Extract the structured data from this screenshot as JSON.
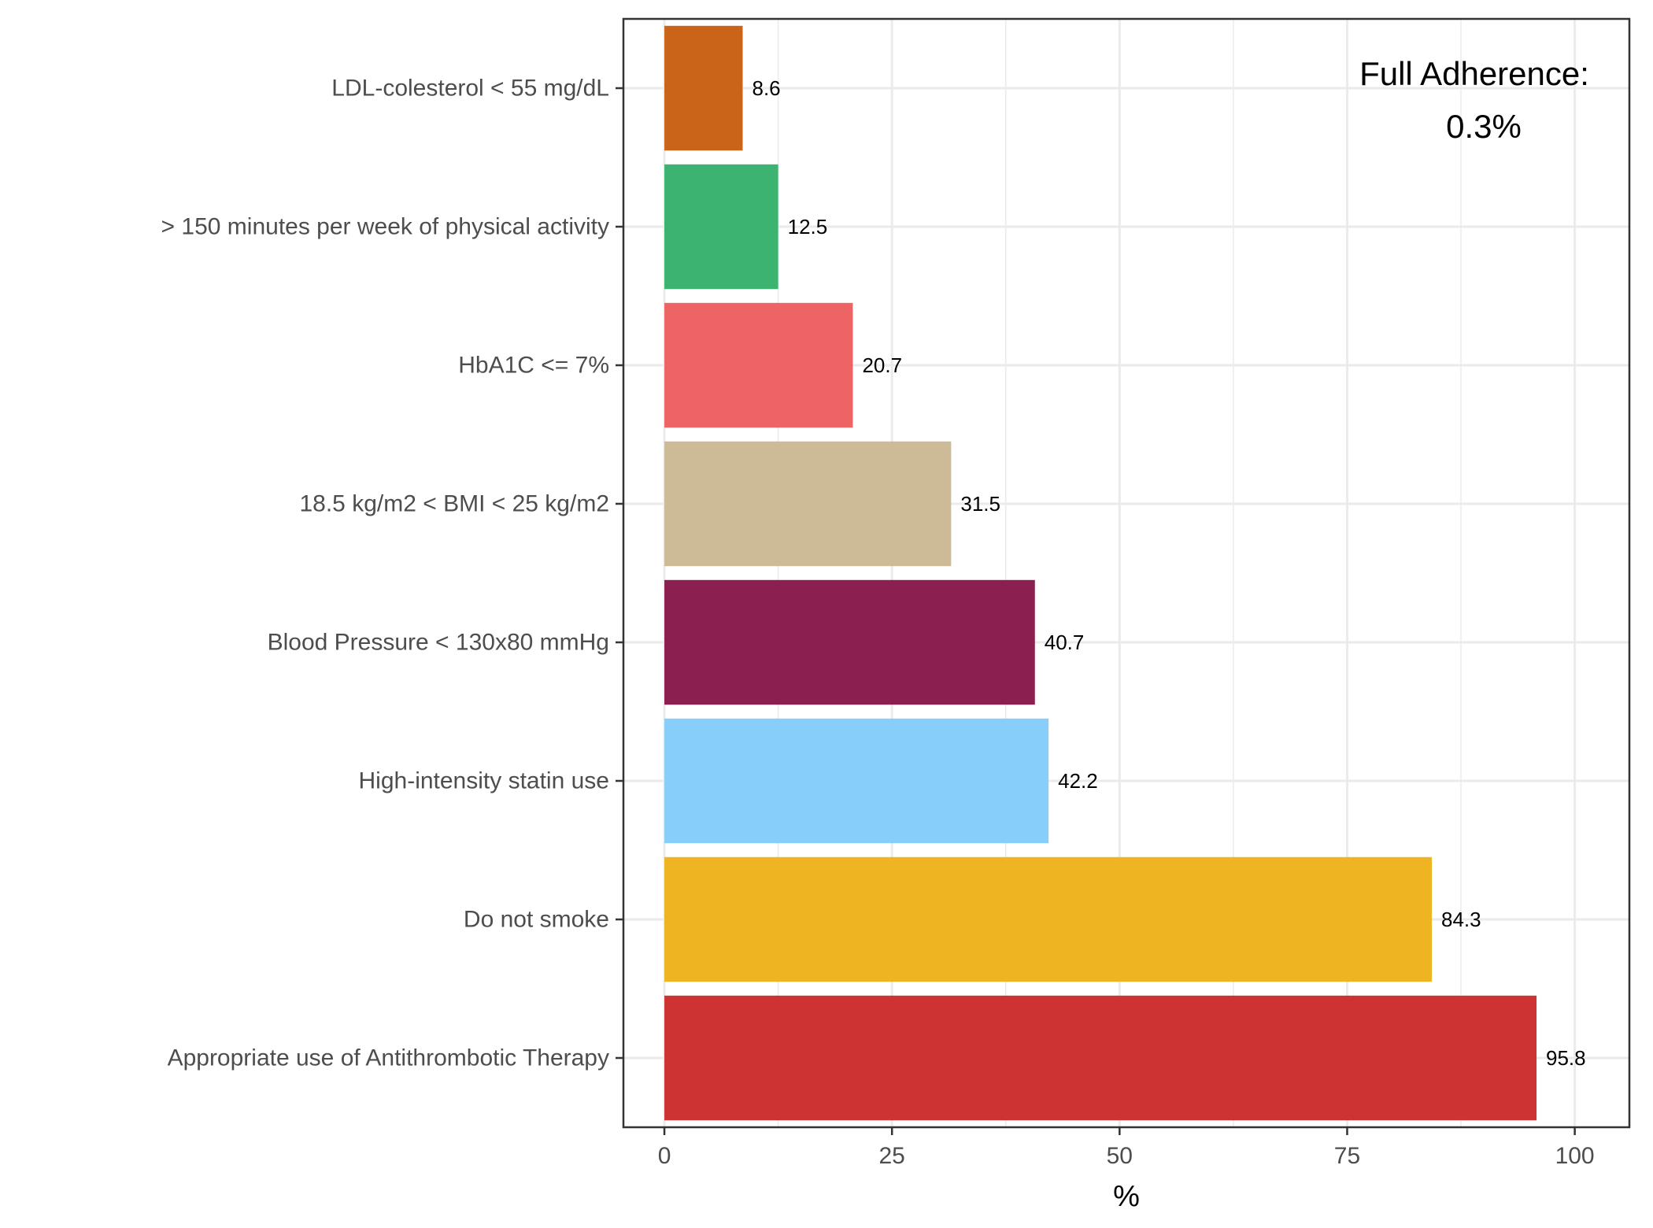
{
  "chart_data": {
    "type": "bar",
    "orientation": "horizontal",
    "categories": [
      "LDL-colesterol < 55 mg/dL",
      "> 150 minutes per week of physical activity",
      "HbA1C <= 7%",
      "18.5 kg/m2 < BMI < 25 kg/m2",
      "Blood Pressure < 130x80 mmHg",
      "High-intensity statin use",
      "Do not smoke",
      "Appropriate use of Antithrombotic Therapy"
    ],
    "values": [
      8.6,
      12.5,
      20.7,
      31.5,
      40.7,
      42.2,
      84.3,
      95.8
    ],
    "value_labels": [
      "8.6",
      "12.5",
      "20.7",
      "31.5",
      "40.7",
      "42.2",
      "84.3",
      "95.8"
    ],
    "colors": [
      "#CA6418",
      "#3CB371",
      "#EE6363",
      "#CDBA96",
      "#8B1F4F",
      "#87CEFA",
      "#EEB422",
      "#CD3333"
    ],
    "xlabel": "%",
    "ylabel": "",
    "xlim": [
      -4.5,
      106
    ],
    "xticks": [
      0,
      25,
      50,
      75,
      100
    ],
    "xtick_labels": [
      "0",
      "25",
      "50",
      "75",
      "100"
    ],
    "grid": true,
    "annotation": {
      "line1": "Full Adherence:",
      "line2": "0.3%"
    }
  }
}
